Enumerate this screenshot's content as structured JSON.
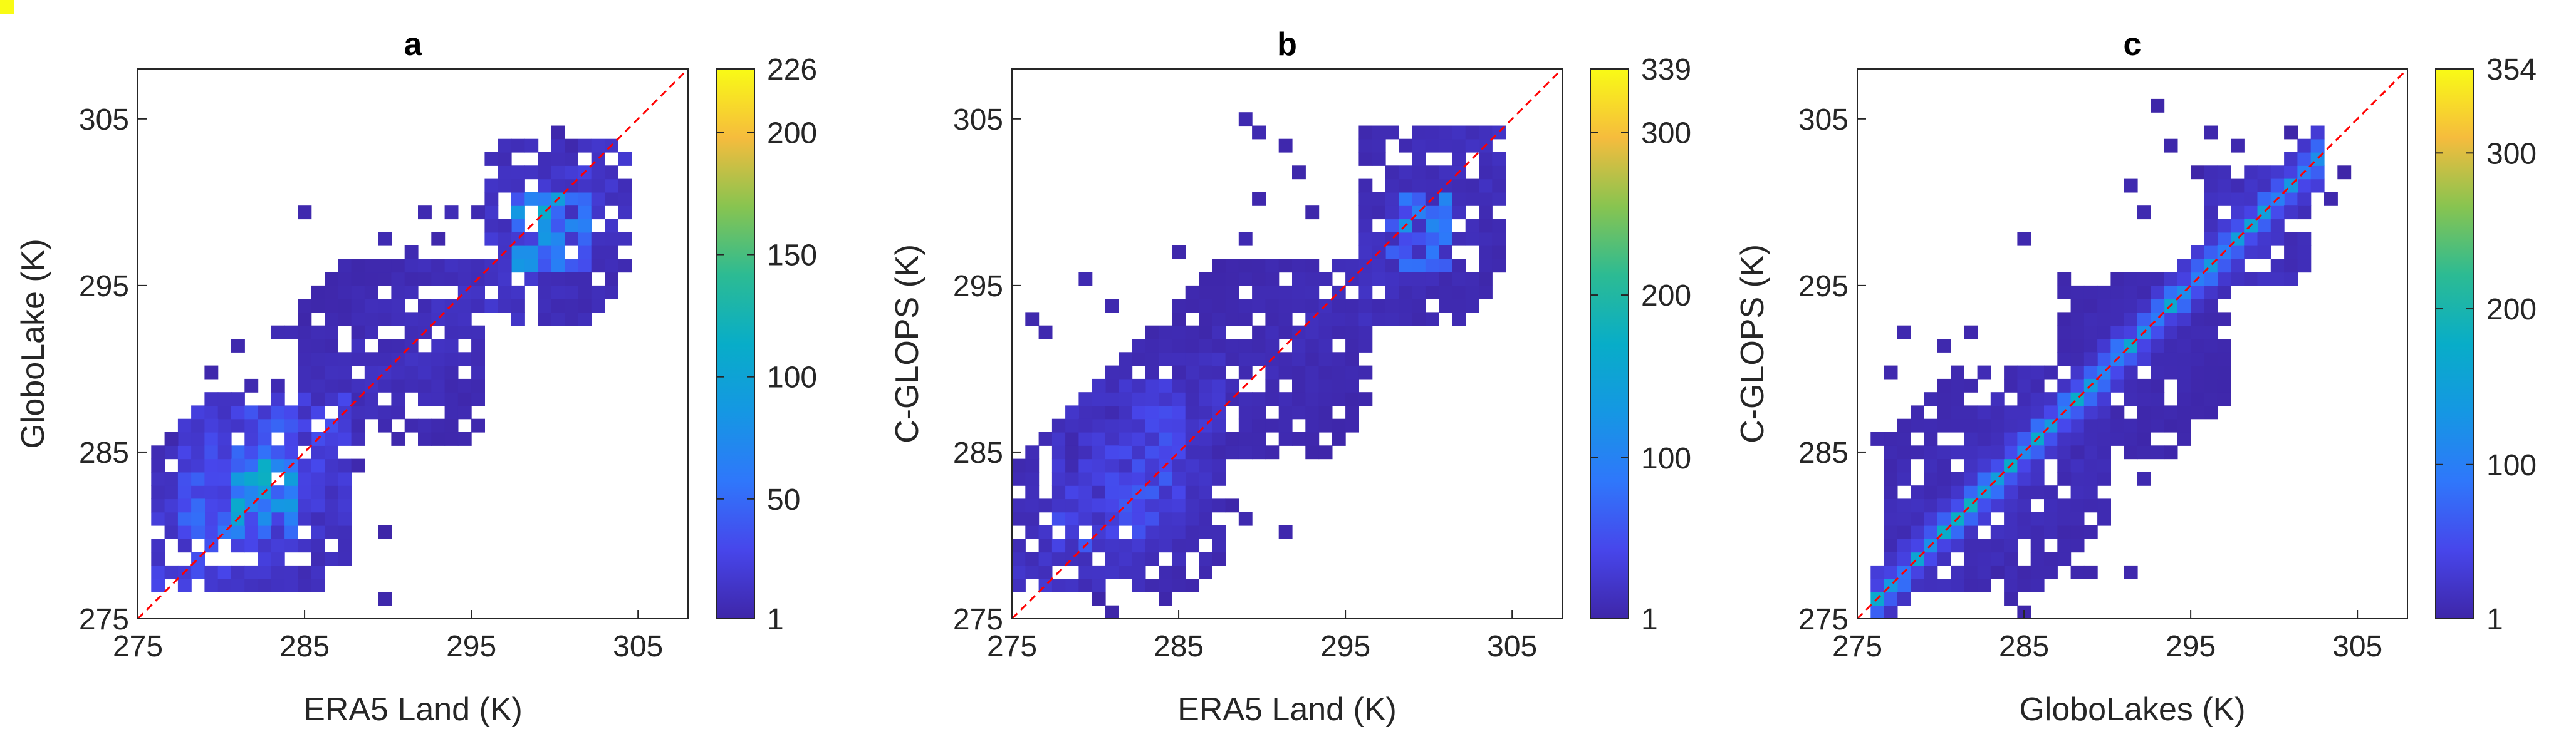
{
  "chart_data": [
    {
      "type": "heatmap",
      "title": "a",
      "xlabel": "ERA5 Land (K)",
      "ylabel": "GloboLake (K)",
      "xlim": [
        275,
        308
      ],
      "ylim": [
        275,
        308
      ],
      "xticks": [
        275,
        285,
        295,
        305
      ],
      "yticks": [
        275,
        285,
        295,
        305
      ],
      "colorbar": {
        "min": 1,
        "max": 226,
        "ticks": [
          1,
          50,
          100,
          150,
          200,
          226
        ]
      },
      "reference_line": "1:1",
      "bin_width": 0.8,
      "clusters": [
        {
          "x": [
            276,
            287
          ],
          "y": [
            277,
            288
          ],
          "value": 30
        },
        {
          "x": [
            278,
            284
          ],
          "y": [
            280,
            287
          ],
          "value": 60
        },
        {
          "x": [
            281,
            284
          ],
          "y": [
            281,
            284
          ],
          "value": 110
        },
        {
          "x": [
            298,
            302
          ],
          "y": [
            296,
            300
          ],
          "value": 90
        },
        {
          "x": [
            285,
            295
          ],
          "y": [
            286,
            296
          ],
          "value": 12
        },
        {
          "x": [
            296,
            304
          ],
          "y": [
            293,
            303
          ],
          "value": 20
        }
      ],
      "peaks": [
        {
          "x": 275.5,
          "y": 275.5,
          "value": 120
        },
        {
          "x": 280.4,
          "y": 279,
          "value": 226
        },
        {
          "x": 282.2,
          "y": 282.4,
          "value": 210
        },
        {
          "x": 299.5,
          "y": 297.4,
          "value": 226
        },
        {
          "x": 300.2,
          "y": 298.6,
          "value": 130
        }
      ],
      "sparse": [
        [
          279,
          290
        ],
        [
          281,
          291
        ],
        [
          283,
          292
        ],
        [
          285,
          294
        ],
        [
          288,
          296
        ],
        [
          290,
          298
        ],
        [
          292,
          299
        ],
        [
          294,
          299
        ],
        [
          288,
          291
        ],
        [
          289,
          289
        ],
        [
          291,
          290
        ],
        [
          285,
          290
        ],
        [
          287,
          287
        ],
        [
          288,
          284
        ],
        [
          286,
          285
        ],
        [
          287,
          283
        ],
        [
          290,
          280
        ],
        [
          290,
          276
        ],
        [
          285,
          299
        ],
        [
          295,
          299
        ],
        [
          296,
          298
        ],
        [
          297,
          302
        ],
        [
          300,
          304
        ],
        [
          301,
          303
        ],
        [
          293,
          294
        ],
        [
          292,
          293
        ],
        [
          291,
          292
        ],
        [
          294,
          292
        ],
        [
          286,
          289
        ],
        [
          284,
          292
        ],
        [
          283,
          289
        ],
        [
          279,
          287
        ],
        [
          277,
          286
        ],
        [
          276,
          285
        ],
        [
          280,
          288
        ],
        [
          282,
          289
        ],
        [
          286,
          292
        ],
        [
          288,
          292
        ],
        [
          289,
          295
        ],
        [
          292,
          296
        ],
        [
          291,
          297
        ],
        [
          293,
          298
        ],
        [
          295,
          296
        ],
        [
          296,
          294
        ],
        [
          297,
          295
        ],
        [
          299,
          301
        ],
        [
          302,
          301
        ],
        [
          303,
          300
        ],
        [
          282,
          286
        ],
        [
          284,
          287
        ]
      ]
    },
    {
      "type": "heatmap",
      "title": "b",
      "xlabel": "ERA5 Land (K)",
      "ylabel": "C-GLOPS (K)",
      "xlim": [
        275,
        308
      ],
      "ylim": [
        275,
        308
      ],
      "xticks": [
        275,
        285,
        295,
        305
      ],
      "yticks": [
        275,
        285,
        295,
        305
      ],
      "colorbar": {
        "min": 1,
        "max": 339,
        "ticks": [
          1,
          100,
          200,
          300,
          339
        ]
      },
      "reference_line": "1:1",
      "bin_width": 0.8,
      "clusters": [
        {
          "x": [
            275,
            287
          ],
          "y": [
            277,
            292
          ],
          "value": 25
        },
        {
          "x": [
            278,
            285
          ],
          "y": [
            279,
            289
          ],
          "value": 55
        },
        {
          "x": [
            298,
            301
          ],
          "y": [
            296,
            300
          ],
          "value": 100
        },
        {
          "x": [
            285,
            296
          ],
          "y": [
            285,
            296
          ],
          "value": 12
        },
        {
          "x": [
            296,
            304
          ],
          "y": [
            293,
            304
          ],
          "value": 18
        }
      ],
      "peaks": [
        {
          "x": 275.5,
          "y": 276,
          "value": 110
        },
        {
          "x": 281,
          "y": 279.5,
          "value": 140
        },
        {
          "x": 282,
          "y": 283,
          "value": 100
        },
        {
          "x": 299.2,
          "y": 298,
          "value": 339
        },
        {
          "x": 299.8,
          "y": 299,
          "value": 250
        },
        {
          "x": 300.4,
          "y": 298.6,
          "value": 180
        }
      ],
      "sparse": [
        [
          289,
          305
        ],
        [
          290,
          304
        ],
        [
          291,
          303
        ],
        [
          292,
          302
        ],
        [
          290,
          300
        ],
        [
          293,
          299
        ],
        [
          289,
          298
        ],
        [
          287,
          296
        ],
        [
          285,
          294
        ],
        [
          276,
          293
        ],
        [
          277,
          292
        ],
        [
          279,
          295
        ],
        [
          281,
          294
        ],
        [
          283,
          292
        ],
        [
          288,
          282
        ],
        [
          289,
          281
        ],
        [
          291,
          280
        ],
        [
          287,
          279
        ],
        [
          285,
          278
        ],
        [
          284,
          276
        ],
        [
          283,
          277
        ],
        [
          280,
          276
        ],
        [
          281,
          275.5
        ],
        [
          286,
          281
        ],
        [
          288,
          286
        ],
        [
          290,
          287
        ],
        [
          292,
          288
        ],
        [
          294,
          291
        ],
        [
          296,
          293
        ],
        [
          297,
          294
        ],
        [
          285,
          297
        ],
        [
          286,
          290
        ],
        [
          287,
          292
        ],
        [
          295,
          296
        ],
        [
          298,
          302
        ],
        [
          301,
          304
        ],
        [
          302,
          303
        ],
        [
          303,
          302
        ]
      ]
    },
    {
      "type": "heatmap",
      "title": "c",
      "xlabel": "GloboLakes (K)",
      "ylabel": "C-GLOPS (K)",
      "xlim": [
        275,
        308
      ],
      "ylim": [
        275,
        308
      ],
      "xticks": [
        275,
        285,
        295,
        305
      ],
      "yticks": [
        275,
        285,
        295,
        305
      ],
      "colorbar": {
        "min": 1,
        "max": 354,
        "ticks": [
          1,
          100,
          200,
          300,
          354
        ]
      },
      "reference_line": "1:1",
      "bin_width": 0.8,
      "clusters": [
        {
          "x": [
            277,
            290
          ],
          "y": [
            277,
            290
          ],
          "value": 20
        },
        {
          "x": [
            287,
            297
          ],
          "y": [
            285,
            295
          ],
          "value": 12
        },
        {
          "x": [
            296,
            302
          ],
          "y": [
            295,
            302
          ],
          "value": 25
        }
      ],
      "diagonal": {
        "from": 276,
        "to": 303,
        "value": 150
      },
      "peaks": [
        {
          "x": 276,
          "y": 276,
          "value": 120
        },
        {
          "x": 279,
          "y": 279.5,
          "value": 230
        },
        {
          "x": 282,
          "y": 283,
          "value": 210
        },
        {
          "x": 284,
          "y": 285,
          "value": 200
        },
        {
          "x": 297.5,
          "y": 298,
          "value": 200
        },
        {
          "x": 298.6,
          "y": 299,
          "value": 354
        },
        {
          "x": 299.5,
          "y": 299.5,
          "value": 300
        }
      ],
      "sparse": [
        [
          293,
          305.5
        ],
        [
          294,
          303
        ],
        [
          291,
          301
        ],
        [
          292,
          299
        ],
        [
          295,
          302
        ],
        [
          296,
          304
        ],
        [
          301,
          304
        ],
        [
          302,
          303
        ],
        [
          303,
          300
        ],
        [
          304,
          302
        ],
        [
          298,
          303
        ],
        [
          287,
          295
        ],
        [
          285,
          298
        ],
        [
          282,
          292
        ],
        [
          280,
          291
        ],
        [
          278,
          292
        ],
        [
          277,
          290
        ],
        [
          276,
          286
        ],
        [
          283,
          278
        ],
        [
          284,
          277
        ],
        [
          286,
          278
        ],
        [
          288,
          278
        ],
        [
          289,
          278
        ],
        [
          291,
          278
        ],
        [
          284,
          276
        ],
        [
          285,
          275.5
        ],
        [
          287,
          283
        ],
        [
          288,
          281
        ],
        [
          290,
          281
        ],
        [
          292,
          283
        ],
        [
          293,
          285
        ],
        [
          294,
          287
        ],
        [
          294,
          290
        ],
        [
          295,
          292
        ],
        [
          296,
          293
        ],
        [
          289,
          293
        ],
        [
          288,
          294
        ],
        [
          286,
          290
        ],
        [
          281,
          289
        ]
      ]
    }
  ]
}
